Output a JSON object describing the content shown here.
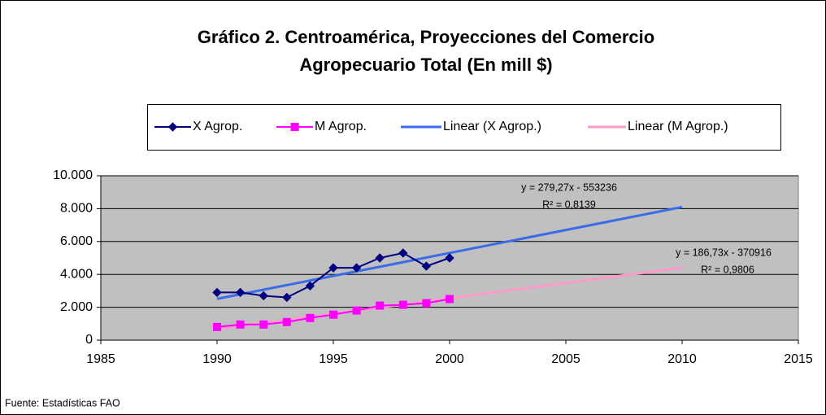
{
  "chart_data": {
    "type": "line",
    "title": [
      "Gráfico 2. Centroamérica, Proyecciones del Comercio",
      "Agropecuario Total  (En mill $)"
    ],
    "series": [
      {
        "name": "X Agrop.",
        "color": "#000080",
        "marker": "diamond",
        "x": [
          1990,
          1991,
          1992,
          1993,
          1994,
          1995,
          1996,
          1997,
          1998,
          1999,
          2000
        ],
        "values": [
          2900,
          2900,
          2700,
          2600,
          3300,
          4400,
          4400,
          5000,
          5300,
          4500,
          5000
        ]
      },
      {
        "name": "M Agrop.",
        "color": "#ff00ff",
        "marker": "square",
        "x": [
          1990,
          1991,
          1992,
          1993,
          1994,
          1995,
          1996,
          1997,
          1998,
          1999,
          2000
        ],
        "values": [
          800,
          950,
          950,
          1100,
          1350,
          1550,
          1800,
          2100,
          2150,
          2250,
          2500
        ]
      },
      {
        "name": "Linear (X Agrop.)",
        "color": "#3a6be8",
        "marker": "none",
        "x": [
          1990,
          2010
        ],
        "values": [
          2511,
          8097
        ]
      },
      {
        "name": "Linear (M Agrop.)",
        "color": "#ff99cc",
        "marker": "none",
        "x": [
          1990,
          2010
        ],
        "values": [
          677,
          4411
        ]
      }
    ],
    "annotations": [
      "y = 279,27x - 553236",
      "R² = 0,8139",
      "y = 186,73x - 370916",
      "R² = 0,9806"
    ],
    "xlim": [
      1985,
      2015
    ],
    "xticks": [
      1985,
      1990,
      1995,
      2000,
      2005,
      2010,
      2015
    ],
    "ylim": [
      0,
      10000
    ],
    "yticks": [
      0,
      {
        "value": 2000,
        "label": "2.000"
      },
      {
        "value": 4000,
        "label": "4.000"
      },
      {
        "value": 6000,
        "label": "6.000"
      },
      {
        "value": 8000,
        "label": "8.000"
      },
      {
        "value": 10000,
        "label": "10.000"
      }
    ],
    "grid": true,
    "plot_background": "#c0c0c0",
    "source": "Fuente: Estadísticas FAO"
  }
}
